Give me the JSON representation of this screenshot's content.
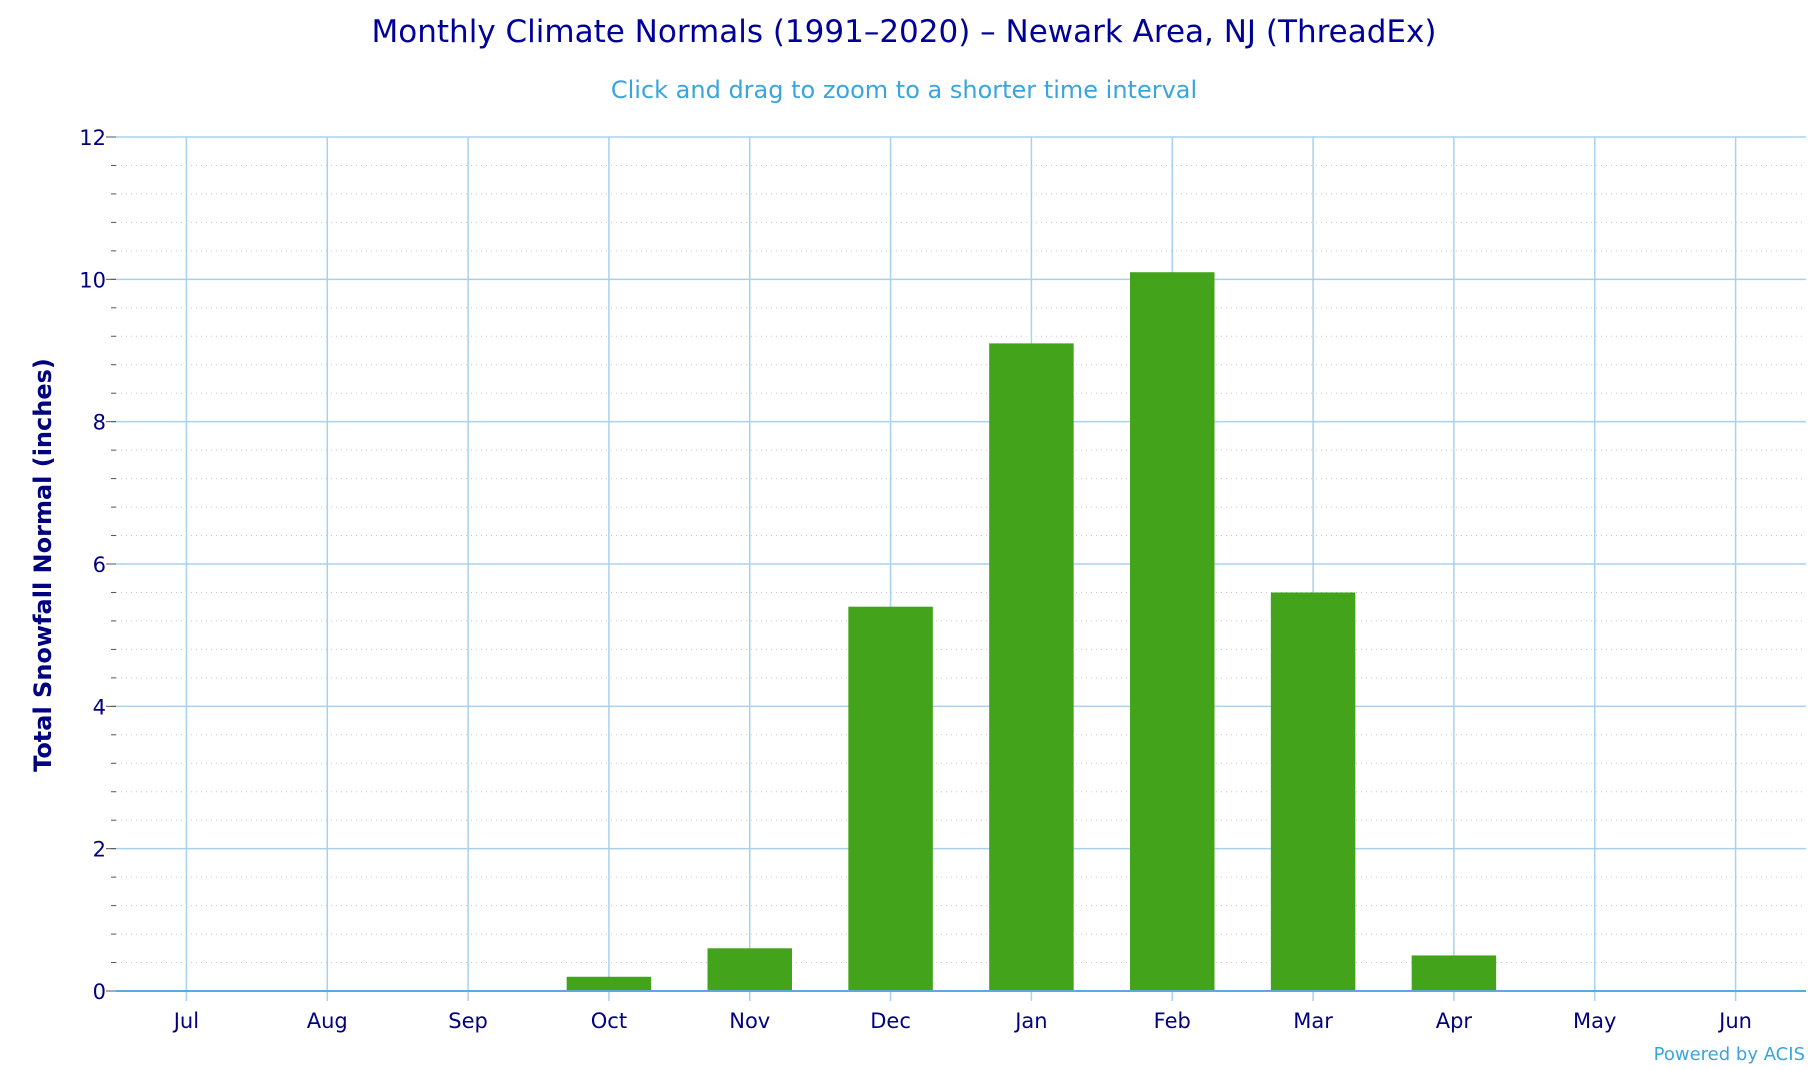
{
  "chart_data": {
    "type": "bar",
    "title": "Monthly Climate Normals (1991–2020) – Newark Area, NJ (ThreadEx)",
    "subtitle": "Click and drag to zoom to a shorter time interval",
    "ylabel": "Total Snowfall Normal (inches)",
    "xlabel": "",
    "categories": [
      "Jul",
      "Aug",
      "Sep",
      "Oct",
      "Nov",
      "Dec",
      "Jan",
      "Feb",
      "Mar",
      "Apr",
      "May",
      "Jun"
    ],
    "values": [
      0,
      0,
      0,
      0.2,
      0.6,
      5.4,
      9.1,
      10.1,
      5.6,
      0.5,
      0,
      0
    ],
    "ylim": [
      0,
      12
    ],
    "yticks": [
      0,
      2,
      4,
      6,
      8,
      10,
      12
    ],
    "grid": true,
    "colors": {
      "bar": "#43a31b",
      "title": "#000099",
      "subtitle": "#3aa5dc",
      "axis_text": "#000080",
      "grid": "#a9d1ee",
      "minor_grid": "#c8c8c8",
      "credit": "#3aa5dc"
    }
  },
  "credit": "Powered by ACIS"
}
